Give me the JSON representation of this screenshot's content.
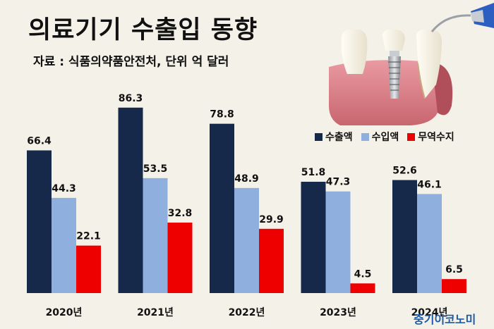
{
  "header": {
    "title": "의료기기 수출입 동향",
    "source": "자료 : 식품의약품안전처, 단위 억 달러"
  },
  "watermark": "중기이코노미",
  "colors": {
    "export": "#16294a",
    "import": "#8fb0de",
    "balance": "#ee0000",
    "background": "#f4f1e8"
  },
  "icons": {
    "photo": "dental-implant-illustration"
  },
  "chart_data": {
    "type": "bar",
    "title": "의료기기 수출입 동향",
    "categories": [
      "2020년",
      "2021년",
      "2022년",
      "2023년",
      "2024년"
    ],
    "series": [
      {
        "name": "수출액",
        "values": [
          66.4,
          86.3,
          78.8,
          51.8,
          52.6
        ]
      },
      {
        "name": "수입액",
        "values": [
          44.3,
          53.5,
          48.9,
          47.3,
          46.1
        ]
      },
      {
        "name": "무역수지",
        "values": [
          22.1,
          32.8,
          29.9,
          4.5,
          6.5
        ]
      }
    ],
    "ylim": [
      0,
      90
    ],
    "grid": false,
    "legend_position": "top-right",
    "data_labels": true
  }
}
